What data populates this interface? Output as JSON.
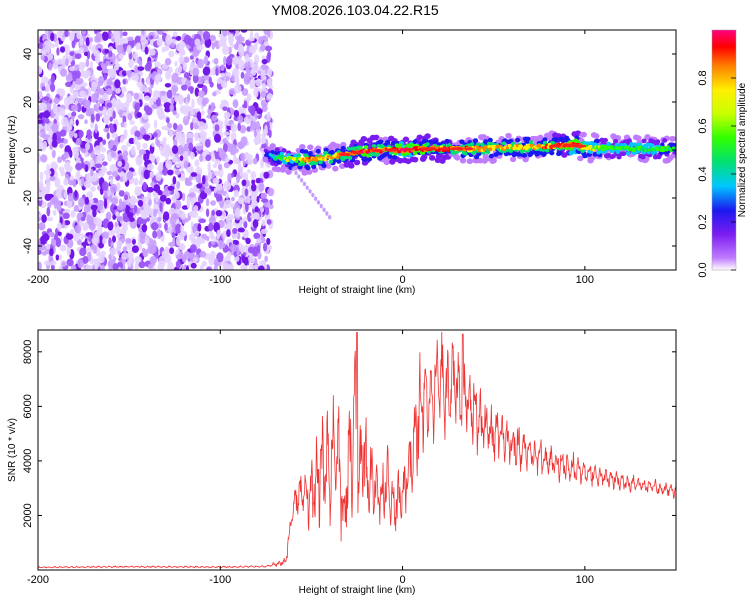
{
  "title": "YM08.2026.103.04.22.R15",
  "chart_data": [
    {
      "type": "heatmap",
      "xlabel": "Height of straight line (km)",
      "ylabel": "Frequency (Hz)",
      "xlim": [
        -200,
        150
      ],
      "ylim": [
        -50,
        50
      ],
      "xticks": [
        -200,
        -100,
        0,
        100
      ],
      "yticks": [
        -40,
        -20,
        0,
        20,
        40
      ],
      "colorbar": {
        "label": "Normalized spectral amplitude",
        "range": [
          0,
          1
        ],
        "ticks": [
          0.0,
          0.2,
          0.4,
          0.6,
          0.8
        ],
        "colormap": [
          "#ffffff",
          "#c07cff",
          "#7a1cf0",
          "#1a1af0",
          "#00c8ff",
          "#00e070",
          "#30ff00",
          "#fff000",
          "#ff8000",
          "#ff0000",
          "#ff0080"
        ]
      },
      "noise_region": {
        "x": [
          -200,
          -72
        ],
        "y": [
          -50,
          50
        ],
        "amplitude": [
          0.05,
          0.25
        ]
      },
      "signal_ridge": {
        "x": [
          -75,
          -70,
          -60,
          -50,
          -40,
          -30,
          -20,
          -10,
          0,
          10,
          20,
          40,
          60,
          80,
          90,
          95,
          100,
          120,
          150
        ],
        "frequency": [
          -2,
          -3,
          -4,
          -4,
          -3,
          -1.5,
          -0.5,
          0,
          0,
          0.5,
          0.5,
          0.5,
          1,
          1.5,
          2,
          2,
          1,
          0.5,
          0.5
        ],
        "amplitude": [
          0.3,
          0.5,
          0.7,
          0.8,
          0.75,
          0.85,
          0.9,
          0.8,
          0.95,
          0.9,
          0.85,
          0.8,
          0.75,
          0.8,
          0.9,
          0.95,
          0.7,
          0.6,
          0.55
        ]
      },
      "spur": {
        "x": [
          -60,
          -52,
          -46,
          -40
        ],
        "frequency": [
          -8,
          -16,
          -22,
          -28
        ],
        "amplitude": 0.15
      }
    },
    {
      "type": "line",
      "xlabel": "Height of straight line (km)",
      "ylabel": "SNR (10 * v/v)",
      "xlim": [
        -200,
        150
      ],
      "ylim": [
        0,
        8800
      ],
      "xticks": [
        -200,
        -100,
        0,
        100
      ],
      "yticks": [
        2000,
        4000,
        6000,
        8000
      ],
      "series": [
        {
          "name": "SNR",
          "color": "#ee3333",
          "x": [
            -200,
            -150,
            -100,
            -75,
            -64,
            -60,
            -55,
            -50,
            -45,
            -40,
            -35,
            -32,
            -30,
            -28,
            -26,
            -24,
            -22,
            -20,
            -18,
            -15,
            -12,
            -10,
            -8,
            -5,
            0,
            5,
            10,
            14,
            18,
            22,
            26,
            30,
            34,
            38,
            42,
            46,
            50,
            60,
            70,
            80,
            90,
            100,
            110,
            120,
            130,
            140,
            150
          ],
          "center": [
            100,
            120,
            110,
            130,
            300,
            2500,
            2600,
            2800,
            3500,
            4000,
            4200,
            1500,
            4200,
            3800,
            6500,
            3000,
            4500,
            3600,
            3400,
            3200,
            2600,
            3200,
            3300,
            2200,
            2800,
            4200,
            6000,
            6400,
            6800,
            7000,
            6800,
            6700,
            6500,
            6200,
            5600,
            5200,
            5000,
            4600,
            4300,
            4000,
            3800,
            3600,
            3400,
            3250,
            3150,
            3000,
            2900
          ],
          "amplitude": [
            25,
            30,
            30,
            30,
            150,
            900,
            1000,
            1200,
            1800,
            2400,
            2500,
            1000,
            3000,
            2500,
            2500,
            2000,
            2400,
            1800,
            1600,
            1400,
            1200,
            1400,
            1200,
            1000,
            1200,
            1600,
            2200,
            2200,
            2100,
            2000,
            1900,
            1700,
            1600,
            1500,
            1300,
            1150,
            1000,
            900,
            800,
            700,
            600,
            500,
            400,
            350,
            300,
            300,
            280
          ],
          "peaks": [
            {
              "x": -25,
              "y": 8700
            },
            {
              "x": 33,
              "y": 8650
            }
          ]
        }
      ]
    }
  ]
}
